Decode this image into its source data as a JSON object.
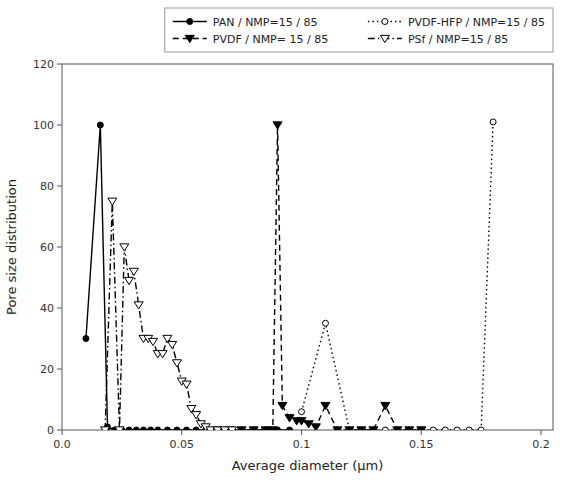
{
  "chart_data": {
    "type": "line",
    "xlabel": "Average diameter (μm)",
    "ylabel": "Pore size distribution",
    "xlim": [
      0.0,
      0.205
    ],
    "ylim": [
      0,
      120
    ],
    "xticks": [
      {
        "value": 0.0,
        "label": "0.0"
      },
      0.05,
      0.1,
      0.15,
      0.2
    ],
    "yticks": [
      0,
      20,
      40,
      60,
      80,
      100,
      120
    ],
    "grid": false,
    "legend": "upper right",
    "series": [
      {
        "name": "PAN / NMP=15 / 85",
        "color": "black",
        "line_style": "solid",
        "marker": "circle",
        "x": [
          0.01,
          0.016,
          0.019,
          0.022,
          0.025,
          0.028,
          0.031,
          0.034,
          0.037,
          0.04,
          0.044,
          0.048,
          0.052,
          0.056,
          0.06,
          0.065,
          0.07,
          0.075,
          0.08,
          0.085,
          0.09,
          0.095
        ],
        "values": [
          30,
          100,
          1,
          0,
          0,
          0,
          0,
          0,
          0,
          0,
          0,
          0,
          0,
          0,
          0,
          0,
          0,
          0,
          0,
          0,
          0,
          0
        ]
      },
      {
        "name": "PVDF-HFP / NMP=15 / 85",
        "color": "black",
        "line_style": "dotted",
        "marker": "circle-open",
        "x": [
          0.1,
          0.11,
          0.12,
          0.125,
          0.13,
          0.135,
          0.14,
          0.145,
          0.15,
          0.155,
          0.16,
          0.165,
          0.17,
          0.175,
          0.18
        ],
        "values": [
          6,
          35,
          0,
          0,
          0,
          0,
          0,
          0,
          0,
          0,
          0,
          0,
          0,
          0,
          101
        ]
      },
      {
        "name": "PVDF / NMP= 15 / 85",
        "color": "black",
        "line_style": "dashed",
        "marker": "triangle-down",
        "x": [
          0.065,
          0.07,
          0.075,
          0.08,
          0.085,
          0.088,
          0.09,
          0.092,
          0.095,
          0.098,
          0.1,
          0.103,
          0.106,
          0.11,
          0.115,
          0.12,
          0.125,
          0.13,
          0.135,
          0.14,
          0.145,
          0.15
        ],
        "values": [
          0,
          0,
          0,
          0,
          0,
          0,
          100,
          8,
          4,
          3,
          3,
          2,
          1,
          8,
          0,
          0,
          0,
          0,
          8,
          0,
          0,
          0
        ]
      },
      {
        "name": "PSf / NMP=15 / 85",
        "color": "black",
        "line_style": "dashdot",
        "marker": "triangle-down-open",
        "x": [
          0.018,
          0.021,
          0.024,
          0.026,
          0.028,
          0.03,
          0.032,
          0.034,
          0.036,
          0.038,
          0.04,
          0.042,
          0.044,
          0.046,
          0.048,
          0.05,
          0.052,
          0.054,
          0.056,
          0.058,
          0.06,
          0.062,
          0.065,
          0.068,
          0.071
        ],
        "values": [
          0,
          75,
          0,
          60,
          49,
          52,
          41,
          30,
          30,
          29,
          25,
          25,
          30,
          28,
          22,
          16,
          15,
          7,
          5,
          2,
          1,
          0,
          0,
          0,
          0
        ]
      }
    ]
  }
}
